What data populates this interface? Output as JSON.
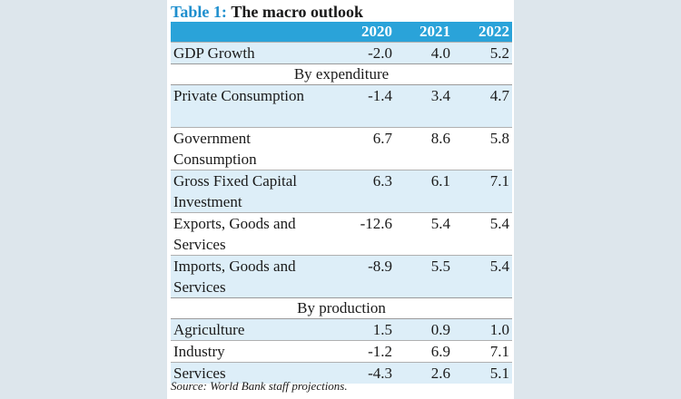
{
  "table": {
    "label": "Table 1:",
    "title": "The macro outlook",
    "headers": [
      "",
      "2020",
      "2021",
      "2022"
    ],
    "rows": [
      {
        "type": "data",
        "label": "GDP Growth",
        "values": [
          "-2.0",
          "4.0",
          "5.2"
        ]
      },
      {
        "type": "section",
        "label": "By expenditure"
      },
      {
        "type": "data",
        "label": "Private Consumption",
        "values": [
          "-1.4",
          "3.4",
          "4.7"
        ]
      },
      {
        "type": "data",
        "label": "Government Consumption",
        "values": [
          "6.7",
          "8.6",
          "5.8"
        ]
      },
      {
        "type": "data",
        "label": "Gross Fixed Capital Investment",
        "values": [
          "6.3",
          "6.1",
          "7.1"
        ]
      },
      {
        "type": "data",
        "label": "Exports, Goods and Services",
        "values": [
          "-12.6",
          "5.4",
          "5.4"
        ]
      },
      {
        "type": "data",
        "label": "Imports, Goods and Services",
        "values": [
          "-8.9",
          "5.5",
          "5.4"
        ]
      },
      {
        "type": "section",
        "label": "By production"
      },
      {
        "type": "data",
        "label": "Agriculture",
        "values": [
          "1.5",
          "0.9",
          "1.0"
        ]
      },
      {
        "type": "data",
        "label": "Industry",
        "values": [
          "-1.2",
          "6.9",
          "7.1"
        ]
      },
      {
        "type": "data",
        "label": "Services",
        "values": [
          "-4.3",
          "2.6",
          "5.1"
        ]
      }
    ],
    "source": "Source: World Bank staff  projections."
  }
}
